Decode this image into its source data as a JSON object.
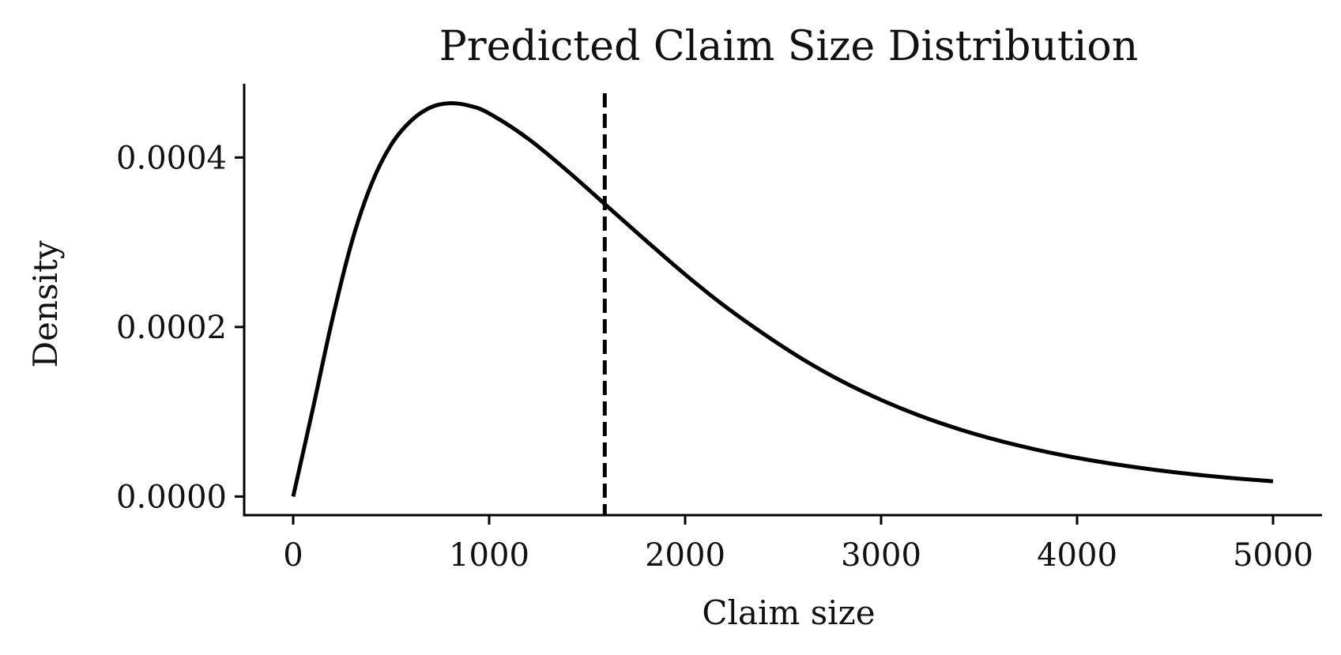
{
  "chart_data": {
    "type": "line",
    "title": "Predicted Claim Size Distribution",
    "xlabel": "Claim size",
    "ylabel": "Density",
    "xlim": [
      -250,
      5250
    ],
    "ylim": [
      -2.2e-05,
      0.000487
    ],
    "x_ticks": [
      0,
      1000,
      2000,
      3000,
      4000,
      5000
    ],
    "x_tick_labels": [
      "0",
      "1000",
      "2000",
      "3000",
      "4000",
      "5000"
    ],
    "y_ticks": [
      0.0,
      0.0002,
      0.0004
    ],
    "y_tick_labels": [
      "0.0000",
      "0.0002",
      "0.0004"
    ],
    "grid": false,
    "legend": false,
    "colors": {
      "line": "#000000",
      "axis": "#000000"
    },
    "series": [
      {
        "style": "solid",
        "x": [
          0,
          100,
          200,
          300,
          400,
          500,
          600,
          700,
          800,
          900,
          1000,
          1200,
          1400,
          1600,
          1800,
          2000,
          2200,
          2400,
          2600,
          2800,
          3000,
          3200,
          3400,
          3600,
          3800,
          4000,
          4200,
          4400,
          4600,
          4800,
          5000
        ],
        "y": [
          0.0,
          0.000103,
          0.000209,
          0.000301,
          0.000369,
          0.000415,
          0.000443,
          0.000459,
          0.000464,
          0.000461,
          0.000452,
          0.000422,
          0.000384,
          0.000343,
          0.000302,
          0.000262,
          0.000225,
          0.000192,
          0.000162,
          0.000136,
          0.000114,
          9.51e-05,
          7.93e-05,
          6.6e-05,
          5.49e-05,
          4.56e-05,
          3.79e-05,
          3.14e-05,
          2.6e-05,
          2.16e-05,
          1.8e-05
        ]
      }
    ],
    "reference_lines": [
      {
        "orientation": "vertical",
        "x": 1590,
        "style": "dashed"
      }
    ]
  }
}
